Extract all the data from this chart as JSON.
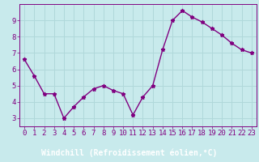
{
  "x": [
    0,
    1,
    2,
    3,
    4,
    5,
    6,
    7,
    8,
    9,
    10,
    11,
    12,
    13,
    14,
    15,
    16,
    17,
    18,
    19,
    20,
    21,
    22,
    23
  ],
  "y": [
    6.6,
    5.6,
    4.5,
    4.5,
    3.0,
    3.7,
    4.3,
    4.8,
    5.0,
    4.7,
    4.5,
    3.2,
    4.3,
    5.0,
    7.2,
    9.0,
    9.6,
    9.2,
    8.9,
    8.5,
    8.1,
    7.6,
    7.2,
    7.0
  ],
  "line_color": "#800080",
  "marker": "*",
  "bg_color": "#c8eaec",
  "grid_color": "#b0d8da",
  "label_bar_color": "#8000a0",
  "xlabel": "Windchill (Refroidissement éolien,°C)",
  "ylim": [
    2.5,
    10.0
  ],
  "xlim": [
    -0.5,
    23.5
  ],
  "yticks": [
    3,
    4,
    5,
    6,
    7,
    8,
    9
  ],
  "xticks": [
    0,
    1,
    2,
    3,
    4,
    5,
    6,
    7,
    8,
    9,
    10,
    11,
    12,
    13,
    14,
    15,
    16,
    17,
    18,
    19,
    20,
    21,
    22,
    23
  ],
  "tick_label_color": "#800080",
  "xlabel_color": "#ffffff",
  "axis_color": "#800080",
  "xlabel_fontsize": 7.0,
  "tick_fontsize": 6.5,
  "linewidth": 1.0,
  "markersize": 3.5
}
